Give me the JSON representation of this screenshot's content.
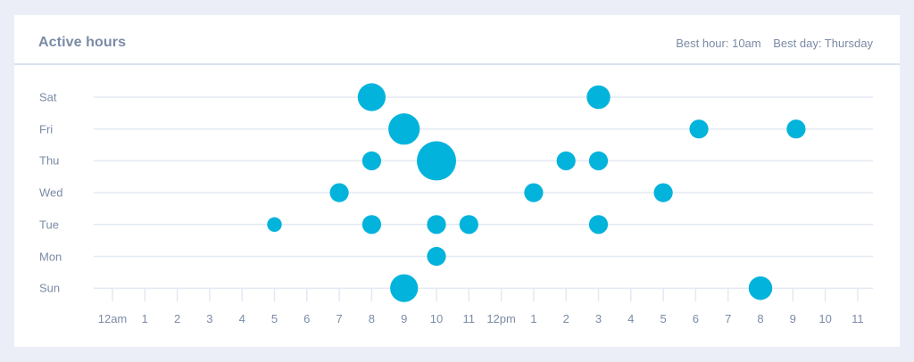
{
  "card": {
    "title": "Active hours",
    "best_hour_label": "Best hour: 10am",
    "best_day_label": "Best day: Thursday"
  },
  "colors": {
    "background": "#ebeef6",
    "card": "#ffffff",
    "bubble": "#02b3dc",
    "gridline": "#e3e9f3",
    "text": "#7b8ba6",
    "divider": "#d9e2ef"
  },
  "chart_data": {
    "type": "scatter",
    "subtype": "bubble-punchcard",
    "title": "Active hours",
    "xlabel": "",
    "ylabel": "",
    "x_ticks": [
      "12am",
      "1",
      "2",
      "3",
      "4",
      "5",
      "6",
      "7",
      "8",
      "9",
      "10",
      "11",
      "12pm",
      "1",
      "2",
      "3",
      "4",
      "5",
      "6",
      "7",
      "8",
      "9",
      "10",
      "11"
    ],
    "y_categories": [
      "Sat",
      "Fri",
      "Thu",
      "Wed",
      "Tue",
      "Mon",
      "Sun"
    ],
    "xlim": [
      0,
      23
    ],
    "grid": true,
    "legend": null,
    "annotations": [
      "Best hour: 10am",
      "Best day: Thursday"
    ],
    "size_scale_note": "relative activity, largest = 100",
    "points": [
      {
        "day": "Sat",
        "hour": 8,
        "size": 50
      },
      {
        "day": "Sat",
        "hour": 15,
        "size": 36
      },
      {
        "day": "Fri",
        "hour": 9,
        "size": 64
      },
      {
        "day": "Fri",
        "hour": 18.1,
        "size": 23
      },
      {
        "day": "Fri",
        "hour": 21.1,
        "size": 23
      },
      {
        "day": "Thu",
        "hour": 8,
        "size": 23
      },
      {
        "day": "Thu",
        "hour": 10,
        "size": 100
      },
      {
        "day": "Thu",
        "hour": 14,
        "size": 23
      },
      {
        "day": "Thu",
        "hour": 15,
        "size": 23
      },
      {
        "day": "Wed",
        "hour": 7,
        "size": 23
      },
      {
        "day": "Wed",
        "hour": 13,
        "size": 23
      },
      {
        "day": "Wed",
        "hour": 17,
        "size": 23
      },
      {
        "day": "Tue",
        "hour": 5,
        "size": 14
      },
      {
        "day": "Tue",
        "hour": 8,
        "size": 23
      },
      {
        "day": "Tue",
        "hour": 10,
        "size": 23
      },
      {
        "day": "Tue",
        "hour": 11,
        "size": 23
      },
      {
        "day": "Tue",
        "hour": 15,
        "size": 23
      },
      {
        "day": "Mon",
        "hour": 10,
        "size": 23
      },
      {
        "day": "Sun",
        "hour": 9,
        "size": 50
      },
      {
        "day": "Sun",
        "hour": 20,
        "size": 36
      }
    ]
  }
}
